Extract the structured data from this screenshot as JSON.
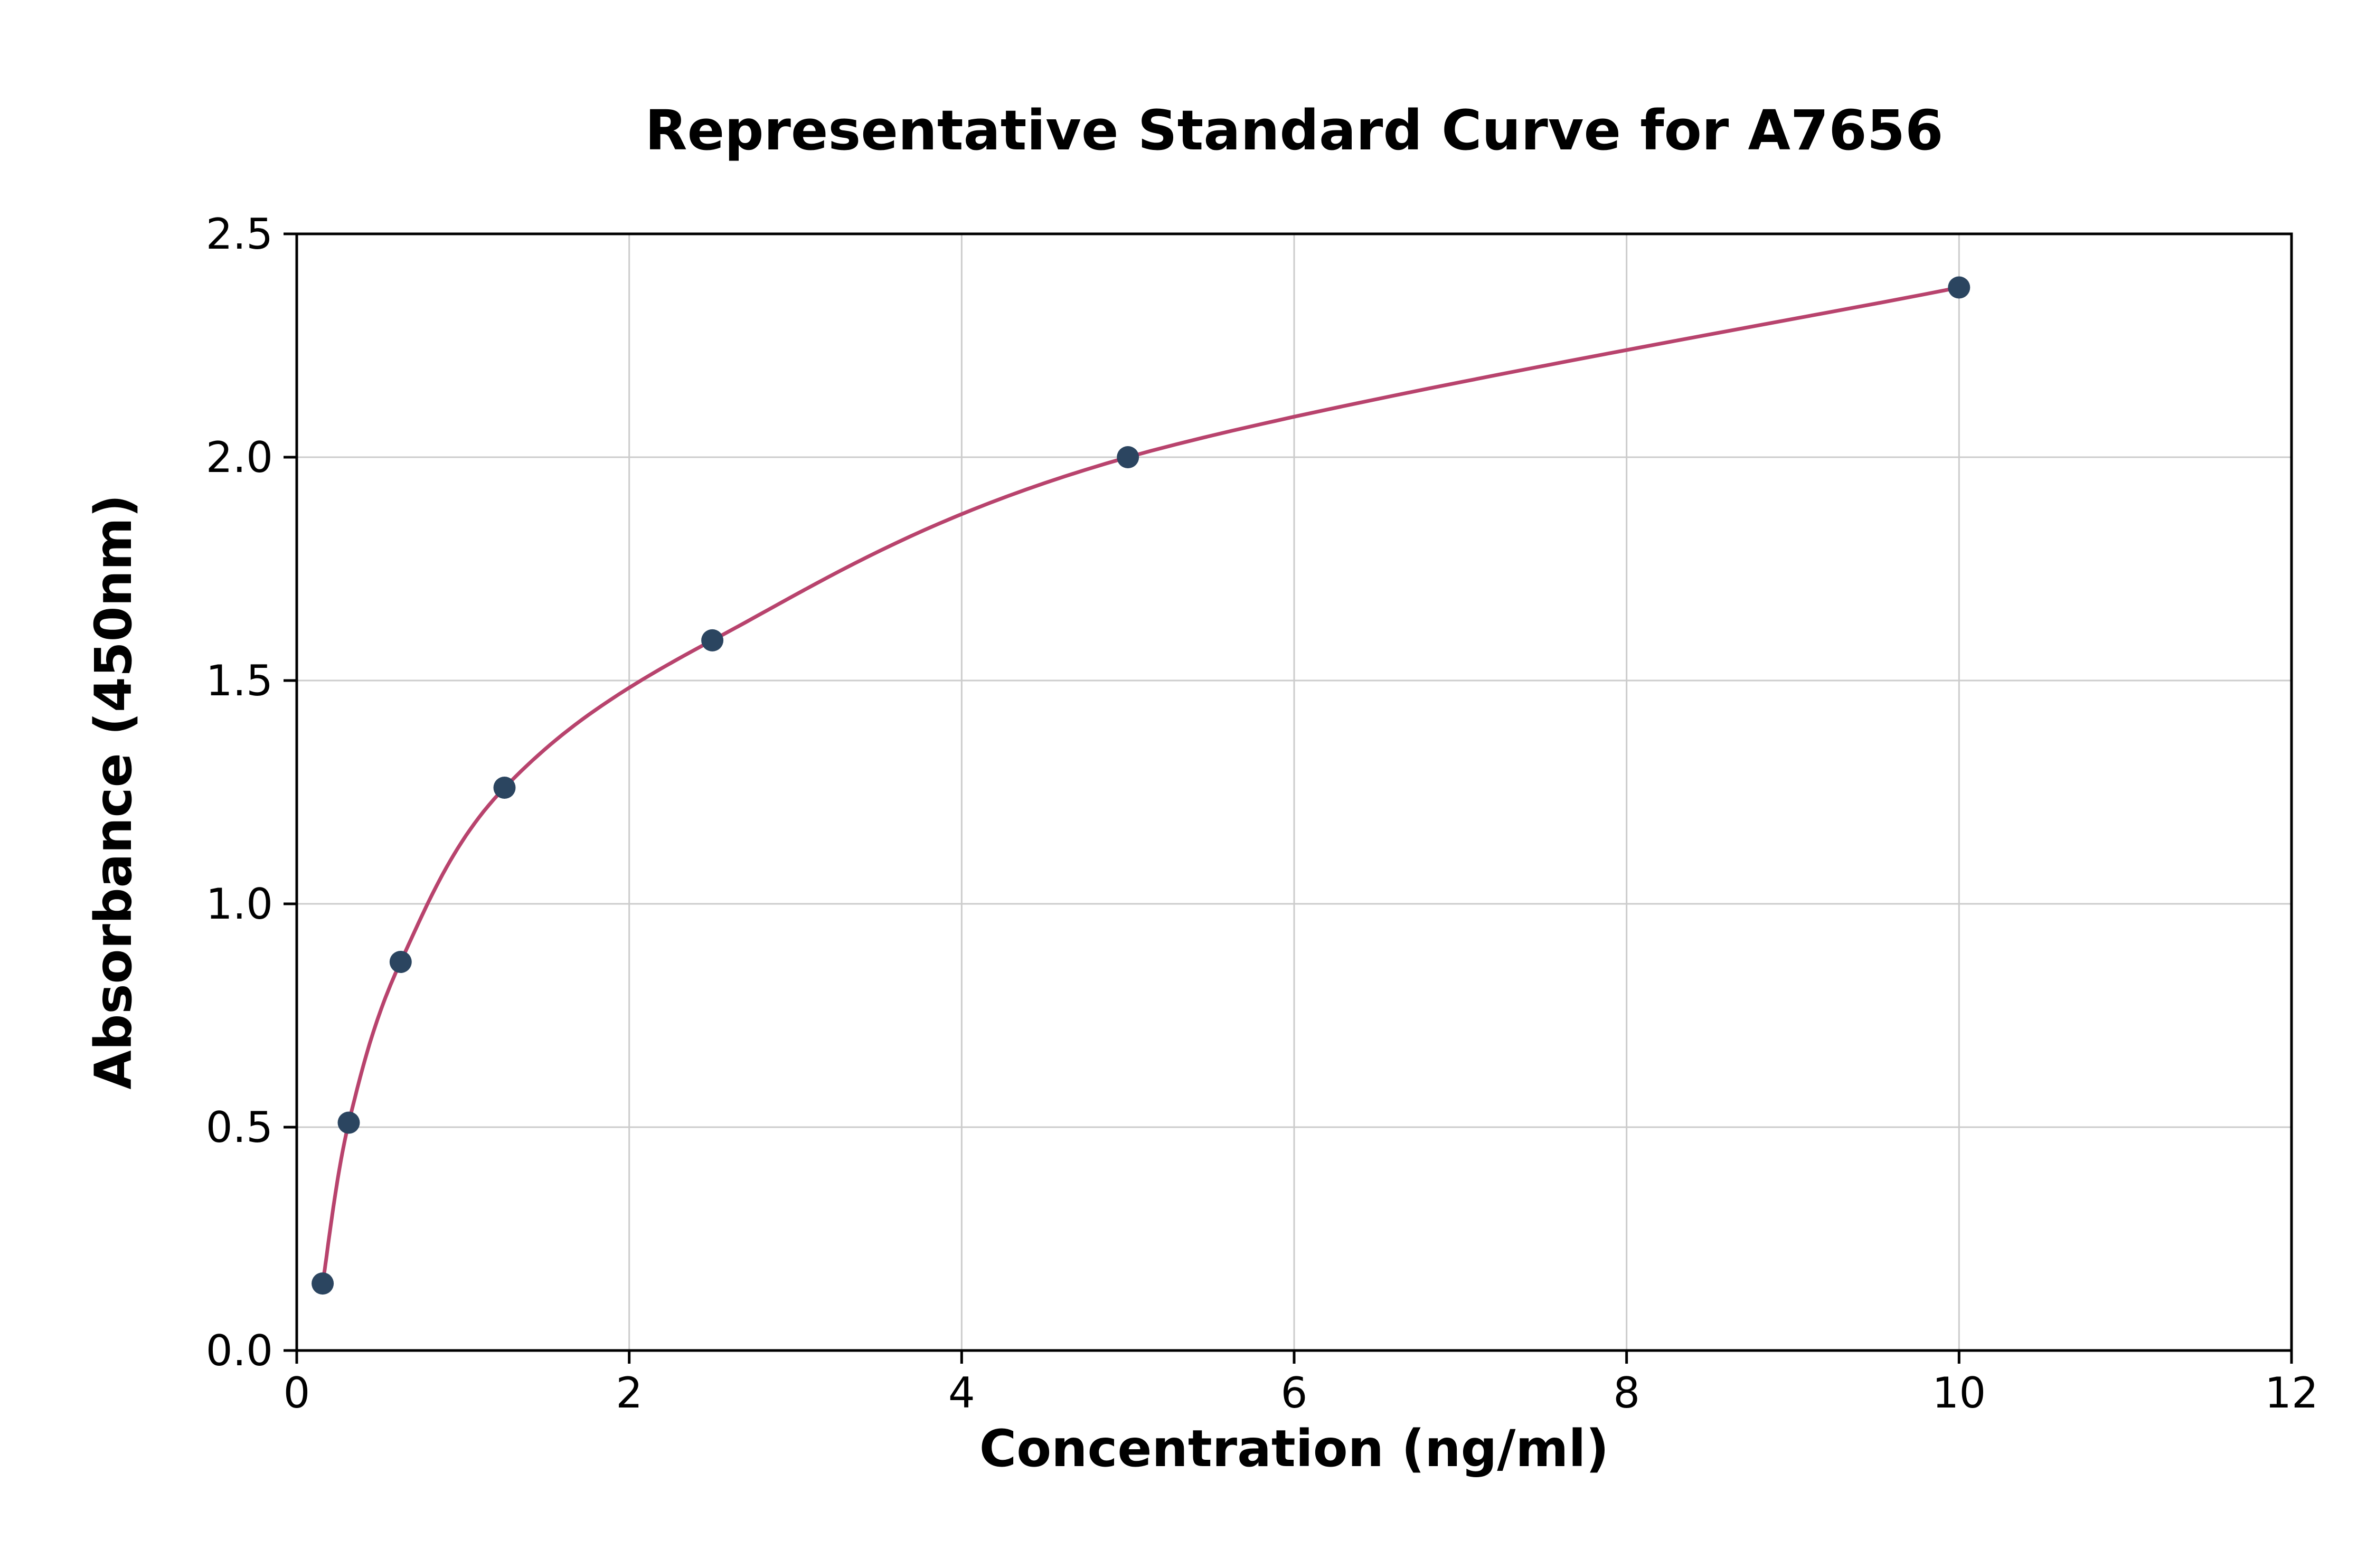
{
  "page": {
    "background": "#ffffff"
  },
  "chart_data": {
    "type": "scatter",
    "title": "Representative Standard Curve for A7656",
    "xlabel": "Concentration (ng/ml)",
    "ylabel": "Absorbance (450nm)",
    "xlim": [
      0,
      12
    ],
    "ylim": [
      0,
      2.5
    ],
    "x_ticks": [
      0,
      2,
      4,
      6,
      8,
      10,
      12
    ],
    "x_tick_labels": [
      "0",
      "2",
      "4",
      "6",
      "8",
      "10",
      "12"
    ],
    "y_ticks": [
      0,
      0.5,
      1,
      1.5,
      2,
      2.5
    ],
    "y_tick_labels": [
      "0.0",
      "0.5",
      "1.0",
      "1.5",
      "2.0",
      "2.5"
    ],
    "points": [
      [
        0.156,
        0.15
      ],
      [
        0.313,
        0.51
      ],
      [
        0.625,
        0.87
      ],
      [
        1.25,
        1.26
      ],
      [
        2.5,
        1.59
      ],
      [
        5.0,
        2.0
      ],
      [
        10.0,
        2.38
      ]
    ],
    "grid": true,
    "legend": "none",
    "colors": {
      "curve": "#b8436d",
      "point": "#2b4560",
      "grid": "#cccccc",
      "axis": "#000000",
      "tick_text": "#000000"
    }
  }
}
